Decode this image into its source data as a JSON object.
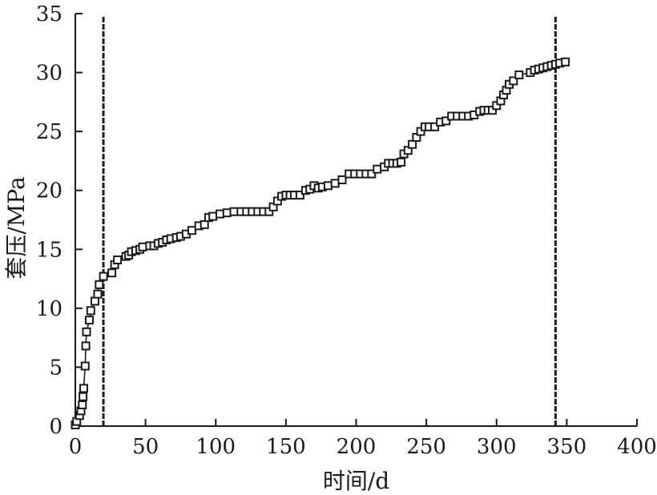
{
  "chart_data": {
    "type": "scatter",
    "xlabel": "时间/d",
    "ylabel": "套压/MPa",
    "xlim": [
      0,
      400
    ],
    "ylim": [
      0,
      35
    ],
    "x_ticks": [
      0,
      50,
      100,
      150,
      200,
      250,
      300,
      350,
      400
    ],
    "y_ticks": [
      0,
      5,
      10,
      15,
      20,
      25,
      30,
      35
    ],
    "grid": false,
    "marker": "open-square",
    "colors": {
      "ink": "#1a1a1a",
      "marker_fill": "#ffffff"
    },
    "vertical_lines": [
      20,
      342
    ],
    "series": [
      {
        "points": [
          [
            0,
            0.1
          ],
          [
            1,
            0.4
          ],
          [
            3,
            0.9
          ],
          [
            4,
            1.3
          ],
          [
            5,
            1.8
          ],
          [
            5.5,
            2.5
          ],
          [
            6,
            3.2
          ],
          [
            7,
            5.1
          ],
          [
            7.5,
            6.8
          ],
          [
            8,
            8.0
          ],
          [
            10,
            9.0
          ],
          [
            11,
            9.8
          ],
          [
            14,
            10.6
          ],
          [
            16,
            11.2
          ],
          [
            17,
            12.0
          ],
          [
            20,
            12.7
          ],
          [
            26,
            13.0
          ],
          [
            28,
            13.7
          ],
          [
            30,
            14.1
          ],
          [
            36,
            14.4
          ],
          [
            38,
            14.5
          ],
          [
            40,
            14.8
          ],
          [
            43,
            14.9
          ],
          [
            46,
            15.0
          ],
          [
            48,
            15.2
          ],
          [
            53,
            15.3
          ],
          [
            56,
            15.3
          ],
          [
            59,
            15.5
          ],
          [
            62,
            15.6
          ],
          [
            65,
            15.8
          ],
          [
            68,
            15.9
          ],
          [
            72,
            16.0
          ],
          [
            75,
            16.1
          ],
          [
            79,
            16.3
          ],
          [
            83,
            16.6
          ],
          [
            88,
            17.0
          ],
          [
            92,
            17.1
          ],
          [
            95,
            17.7
          ],
          [
            98,
            17.8
          ],
          [
            103,
            18.0
          ],
          [
            108,
            18.1
          ],
          [
            113,
            18.2
          ],
          [
            118,
            18.2
          ],
          [
            122,
            18.2
          ],
          [
            126,
            18.2
          ],
          [
            130,
            18.2
          ],
          [
            134,
            18.2
          ],
          [
            138,
            18.2
          ],
          [
            141,
            18.6
          ],
          [
            144,
            19.1
          ],
          [
            147,
            19.5
          ],
          [
            150,
            19.6
          ],
          [
            153,
            19.6
          ],
          [
            156,
            19.6
          ],
          [
            160,
            19.6
          ],
          [
            164,
            20.0
          ],
          [
            167,
            20.1
          ],
          [
            170,
            20.4
          ],
          [
            173,
            20.2
          ],
          [
            176,
            20.3
          ],
          [
            180,
            20.4
          ],
          [
            185,
            20.6
          ],
          [
            190,
            20.9
          ],
          [
            195,
            21.4
          ],
          [
            199,
            21.4
          ],
          [
            203,
            21.4
          ],
          [
            207,
            21.4
          ],
          [
            211,
            21.4
          ],
          [
            215,
            21.8
          ],
          [
            220,
            22.0
          ],
          [
            223,
            22.3
          ],
          [
            226,
            22.3
          ],
          [
            229,
            22.3
          ],
          [
            232,
            22.4
          ],
          [
            234,
            23.1
          ],
          [
            237,
            23.4
          ],
          [
            240,
            23.9
          ],
          [
            243,
            24.5
          ],
          [
            246,
            25.0
          ],
          [
            249,
            25.4
          ],
          [
            252,
            25.4
          ],
          [
            256,
            25.4
          ],
          [
            260,
            25.8
          ],
          [
            264,
            25.9
          ],
          [
            268,
            26.3
          ],
          [
            272,
            26.3
          ],
          [
            276,
            26.3
          ],
          [
            280,
            26.3
          ],
          [
            284,
            26.4
          ],
          [
            288,
            26.7
          ],
          [
            291,
            26.8
          ],
          [
            294,
            26.8
          ],
          [
            297,
            26.8
          ],
          [
            300,
            27.2
          ],
          [
            303,
            27.6
          ],
          [
            305,
            28.1
          ],
          [
            307,
            28.5
          ],
          [
            309,
            29.0
          ],
          [
            312,
            29.3
          ],
          [
            316,
            29.8
          ],
          [
            324,
            30.0
          ],
          [
            327,
            30.2
          ],
          [
            330,
            30.3
          ],
          [
            333,
            30.4
          ],
          [
            336,
            30.5
          ],
          [
            339,
            30.6
          ],
          [
            342,
            30.7
          ],
          [
            345,
            30.8
          ],
          [
            349,
            30.9
          ]
        ]
      }
    ]
  }
}
